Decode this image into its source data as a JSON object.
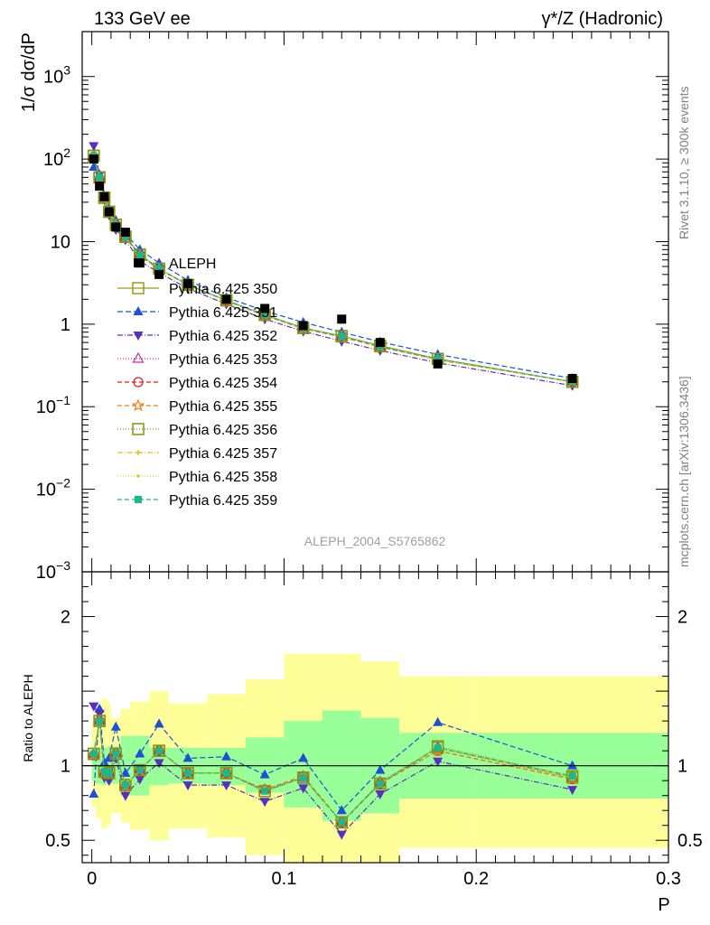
{
  "header": {
    "left_label": "133 GeV ee",
    "right_label": "γ*/Z (Hadronic)"
  },
  "side_labels": {
    "rivet": "Rivet 3.1.10, ≥ 300k events",
    "mcplots": "mcplots.cern.ch [arXiv:1306.3436]"
  },
  "analysis_id": "ALEPH_2004_S5765862",
  "chart_data": [
    {
      "panel": "main",
      "type": "line",
      "ylabel": "1/σ dσ/dP",
      "yscale": "log",
      "ylim": [
        0.001,
        3500
      ],
      "xlim": [
        -0.005,
        0.3
      ],
      "y_ticks": [
        {
          "value": 1000,
          "label": "10",
          "exp": "3"
        },
        {
          "value": 100,
          "label": "10",
          "exp": "2"
        },
        {
          "value": 10,
          "label": "10",
          "exp": ""
        },
        {
          "value": 1,
          "label": "1",
          "exp": ""
        },
        {
          "value": 0.1,
          "label": "10",
          "exp": "−1"
        },
        {
          "value": 0.01,
          "label": "10",
          "exp": "−2"
        },
        {
          "value": 0.001,
          "label": "10",
          "exp": "−3"
        }
      ],
      "legend_position": "center-left",
      "x": [
        0.001,
        0.004,
        0.0065,
        0.009,
        0.0125,
        0.0175,
        0.025,
        0.035,
        0.05,
        0.07,
        0.09,
        0.11,
        0.13,
        0.15,
        0.18,
        0.25
      ],
      "data": {
        "name": "ALEPH",
        "values": [
          100,
          47,
          35,
          23,
          15,
          13,
          5.5,
          4.0,
          3.1,
          2.0,
          1.55,
          0.96,
          1.15,
          0.6,
          0.33,
          0.22
        ]
      },
      "series": [
        {
          "name": "Pythia 6.425 350",
          "color": "#9c9a1c",
          "dash": "",
          "marker": "open-square",
          "values": [
            110,
            60,
            34,
            23,
            16,
            11.5,
            7.0,
            4.7,
            3.0,
            1.95,
            1.3,
            0.9,
            0.72,
            0.55,
            0.38,
            0.2
          ]
        },
        {
          "name": "Pythia 6.425 351",
          "color": "#1f4fd6",
          "dash": "6,3",
          "marker": "filled-triangle-up",
          "values": [
            80,
            65,
            36,
            25,
            18,
            12.5,
            8.0,
            5.5,
            3.4,
            2.1,
            1.45,
            1.05,
            0.8,
            0.61,
            0.43,
            0.22
          ]
        },
        {
          "name": "Pythia 6.425 352",
          "color": "#5a2ec0",
          "dash": "6,2,1,2",
          "marker": "filled-triangle-down",
          "values": [
            145,
            64,
            32,
            21,
            14,
            10.5,
            5.8,
            4.2,
            2.7,
            1.75,
            1.15,
            0.82,
            0.62,
            0.48,
            0.34,
            0.18
          ]
        },
        {
          "name": "Pythia 6.425 353",
          "color": "#cc2aa0",
          "dash": "1,2",
          "marker": "open-triangle-up",
          "values": [
            108,
            59,
            34,
            23,
            16,
            11.3,
            6.9,
            4.7,
            3.0,
            1.93,
            1.28,
            0.89,
            0.71,
            0.54,
            0.37,
            0.2
          ]
        },
        {
          "name": "Pythia 6.425 354",
          "color": "#e41a1c",
          "dash": "5,3",
          "marker": "open-circle",
          "values": [
            107,
            58,
            33,
            23,
            16,
            11.2,
            6.8,
            4.6,
            3.0,
            1.92,
            1.27,
            0.88,
            0.7,
            0.53,
            0.37,
            0.2
          ]
        },
        {
          "name": "Pythia 6.425 355",
          "color": "#f07e1a",
          "dash": "5,3",
          "marker": "open-star",
          "values": [
            108,
            59,
            33,
            23,
            16,
            11.2,
            6.8,
            4.6,
            3.0,
            1.92,
            1.27,
            0.88,
            0.7,
            0.53,
            0.37,
            0.2
          ]
        },
        {
          "name": "Pythia 6.425 356",
          "color": "#7a9a10",
          "dash": "1,2",
          "marker": "open-square",
          "values": [
            109,
            60,
            34,
            23,
            16,
            11.4,
            6.9,
            4.7,
            3.0,
            1.94,
            1.29,
            0.9,
            0.71,
            0.54,
            0.38,
            0.2
          ]
        },
        {
          "name": "Pythia 6.425 357",
          "color": "#e6c01a",
          "dash": "6,2,1,2",
          "marker": "small-cross",
          "values": [
            108,
            59,
            34,
            23,
            16,
            11.3,
            6.9,
            4.7,
            3.0,
            1.93,
            1.28,
            0.89,
            0.71,
            0.54,
            0.37,
            0.2
          ]
        },
        {
          "name": "Pythia 6.425 358",
          "color": "#c8d81a",
          "dash": "1,2",
          "marker": "small-dot",
          "values": [
            108,
            59,
            34,
            23,
            16,
            11.3,
            6.9,
            4.7,
            3.0,
            1.93,
            1.28,
            0.89,
            0.71,
            0.54,
            0.37,
            0.2
          ]
        },
        {
          "name": "Pythia 6.425 359",
          "color": "#1ab88a",
          "dash": "5,3",
          "marker": "filled-square",
          "values": [
            109,
            60,
            34,
            23,
            16,
            11.4,
            6.9,
            4.7,
            3.0,
            1.94,
            1.29,
            0.9,
            0.71,
            0.54,
            0.38,
            0.2
          ]
        }
      ]
    },
    {
      "panel": "ratio",
      "type": "line",
      "ylabel": "Ratio to ALEPH",
      "xlabel": "P",
      "ylim": [
        0.35,
        2.3
      ],
      "xlim": [
        -0.005,
        0.3
      ],
      "y_ticks": [
        "2",
        "1",
        "0.5"
      ],
      "x_ticks": [
        "0",
        "0.1",
        "0.2",
        "0.3"
      ],
      "reference_line": 1,
      "bands": {
        "edges": [
          0,
          0.002,
          0.005,
          0.008,
          0.01,
          0.015,
          0.02,
          0.03,
          0.04,
          0.06,
          0.08,
          0.1,
          0.12,
          0.14,
          0.16,
          0.2,
          0.3
        ],
        "green": [
          [
            0.9,
            1.1
          ],
          [
            0.88,
            1.12
          ],
          [
            0.87,
            1.12
          ],
          [
            0.88,
            1.13
          ],
          [
            0.88,
            1.13
          ],
          [
            0.8,
            1.2
          ],
          [
            0.8,
            1.2
          ],
          [
            0.87,
            1.12
          ],
          [
            0.88,
            1.12
          ],
          [
            0.87,
            1.12
          ],
          [
            0.82,
            1.19
          ],
          [
            0.72,
            1.3
          ],
          [
            0.63,
            1.37
          ],
          [
            0.68,
            1.32
          ],
          [
            0.78,
            1.22
          ],
          [
            0.78,
            1.22
          ]
        ],
        "yellow": [
          [
            0.72,
            1.28
          ],
          [
            0.65,
            1.35
          ],
          [
            0.58,
            1.45
          ],
          [
            0.6,
            1.42
          ],
          [
            0.68,
            1.32
          ],
          [
            0.62,
            1.38
          ],
          [
            0.57,
            1.43
          ],
          [
            0.5,
            1.5
          ],
          [
            0.58,
            1.42
          ],
          [
            0.52,
            1.48
          ],
          [
            0.4,
            1.58
          ],
          [
            0.25,
            1.75
          ],
          [
            0.25,
            1.75
          ],
          [
            0.3,
            1.7
          ],
          [
            0.45,
            1.6
          ],
          [
            0.45,
            1.6
          ]
        ]
      },
      "x": [
        0.001,
        0.004,
        0.0065,
        0.009,
        0.0125,
        0.0175,
        0.025,
        0.035,
        0.05,
        0.07,
        0.09,
        0.11,
        0.13,
        0.15,
        0.18,
        0.25
      ],
      "series": [
        {
          "name": "Pythia 6.425 350",
          "values": [
            1.08,
            1.3,
            0.96,
            0.95,
            1.08,
            0.87,
            0.97,
            1.1,
            0.95,
            0.95,
            0.83,
            0.92,
            0.62,
            0.88,
            1.12,
            0.92
          ]
        },
        {
          "name": "Pythia 6.425 351",
          "values": [
            0.81,
            1.38,
            1.02,
            1.05,
            1.26,
            0.95,
            1.08,
            1.28,
            1.05,
            1.06,
            0.94,
            1.05,
            0.7,
            0.97,
            1.29,
            1.0
          ]
        },
        {
          "name": "Pythia 6.425 352",
          "values": [
            1.4,
            1.35,
            0.92,
            0.9,
            1.05,
            0.8,
            0.91,
            1.02,
            0.87,
            0.87,
            0.76,
            0.85,
            0.54,
            0.81,
            1.03,
            0.84
          ]
        },
        {
          "name": "Pythia 6.425 353",
          "values": [
            1.08,
            1.3,
            0.96,
            0.95,
            1.08,
            0.87,
            0.97,
            1.1,
            0.95,
            0.95,
            0.84,
            0.92,
            0.62,
            0.89,
            1.12,
            0.92
          ]
        },
        {
          "name": "Pythia 6.425 354",
          "values": [
            1.07,
            1.3,
            0.95,
            0.95,
            1.08,
            0.86,
            0.97,
            1.1,
            0.95,
            0.95,
            0.84,
            0.93,
            0.62,
            0.88,
            1.1,
            0.91
          ]
        },
        {
          "name": "Pythia 6.425 355",
          "values": [
            1.07,
            1.3,
            0.95,
            0.95,
            1.08,
            0.86,
            0.97,
            1.1,
            0.95,
            0.95,
            0.84,
            0.93,
            0.62,
            0.88,
            1.1,
            0.91
          ]
        },
        {
          "name": "Pythia 6.425 356",
          "values": [
            1.08,
            1.3,
            0.96,
            0.95,
            1.08,
            0.87,
            0.97,
            1.1,
            0.95,
            0.95,
            0.83,
            0.92,
            0.62,
            0.88,
            1.13,
            0.93
          ]
        },
        {
          "name": "Pythia 6.425 357",
          "values": [
            1.08,
            1.3,
            0.96,
            0.95,
            1.08,
            0.87,
            0.97,
            1.1,
            0.95,
            0.95,
            0.83,
            0.92,
            0.62,
            0.88,
            1.12,
            0.92
          ]
        },
        {
          "name": "Pythia 6.425 358",
          "values": [
            1.08,
            1.3,
            0.96,
            0.95,
            1.08,
            0.87,
            0.97,
            1.1,
            0.95,
            0.95,
            0.83,
            0.92,
            0.62,
            0.88,
            1.12,
            0.92
          ]
        },
        {
          "name": "Pythia 6.425 359",
          "values": [
            1.08,
            1.3,
            0.96,
            0.95,
            1.08,
            0.87,
            0.97,
            1.1,
            0.95,
            0.95,
            0.83,
            0.92,
            0.62,
            0.88,
            1.12,
            0.93
          ]
        }
      ]
    }
  ]
}
